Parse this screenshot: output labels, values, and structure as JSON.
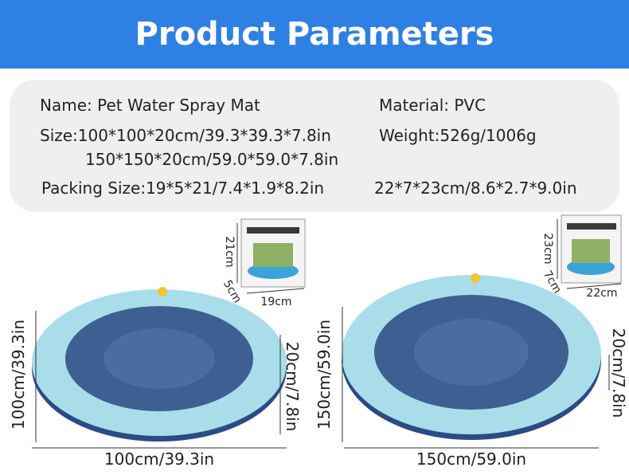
{
  "header": {
    "title": "Product Parameters"
  },
  "specs": {
    "name": "Name: Pet Water Spray Mat",
    "material": "Material: PVC",
    "size_1": "Size:100*100*20cm/39.3*39.3*7.8in",
    "size_2": "150*150*20cm/59.0*59.0*7.8in",
    "weight": "Weight:526g/1006g",
    "packing_1": "Packing Size:19*5*21/7.4*1.9*8.2in",
    "packing_2": "22*7*23cm/8.6*2.7*9.0in"
  },
  "products": [
    {
      "diameter_vertical": "100cm/39.3in",
      "diameter_horizontal": "100cm/39.3in",
      "height": "20cm/7.8in",
      "box_height": "21cm",
      "box_depth": "5cm",
      "box_width": "19cm"
    },
    {
      "diameter_vertical": "150cm/59.0in",
      "diameter_horizontal": "150cm/59.0in",
      "height": "20cm/7.8in",
      "box_height": "23cm",
      "box_depth": "7cm",
      "box_width": "22cm"
    }
  ]
}
